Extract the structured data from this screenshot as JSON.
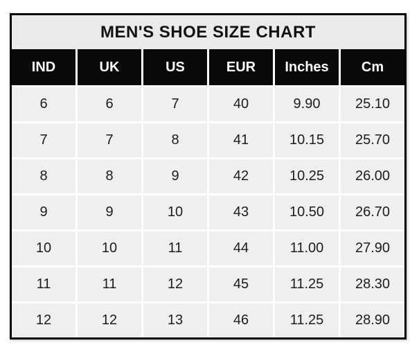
{
  "chart_data": {
    "type": "table",
    "title": "MEN'S SHOE SIZE CHART",
    "columns": [
      "IND",
      "UK",
      "US",
      "EUR",
      "Inches",
      "Cm"
    ],
    "rows": [
      [
        "6",
        "6",
        "7",
        "40",
        "9.90",
        "25.10"
      ],
      [
        "7",
        "7",
        "8",
        "41",
        "10.15",
        "25.70"
      ],
      [
        "8",
        "8",
        "9",
        "42",
        "10.25",
        "26.00"
      ],
      [
        "9",
        "9",
        "10",
        "43",
        "10.50",
        "26.70"
      ],
      [
        "10",
        "10",
        "11",
        "44",
        "11.00",
        "27.90"
      ],
      [
        "11",
        "11",
        "12",
        "45",
        "11.25",
        "28.30"
      ],
      [
        "12",
        "12",
        "13",
        "46",
        "11.25",
        "28.90"
      ]
    ],
    "colors": {
      "border": "#000000",
      "title_bg": "#eaeaea",
      "header_bg": "#0a0a0a",
      "header_text": "#ffffff",
      "cell_bg": "#f0eff0",
      "gridline": "#ffffff",
      "text": "#1c1c1c"
    }
  }
}
